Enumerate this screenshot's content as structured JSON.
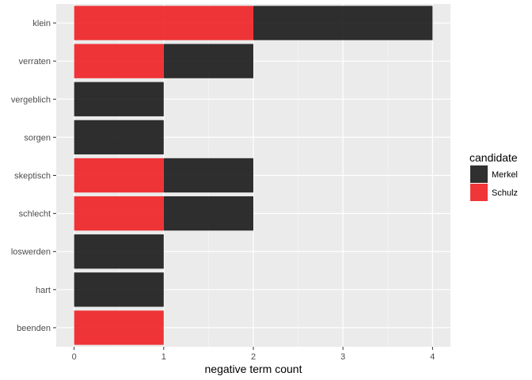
{
  "chart_data": {
    "type": "bar",
    "orientation": "horizontal",
    "stacked": true,
    "categories": [
      "klein",
      "verraten",
      "vergeblich",
      "sorgen",
      "skeptisch",
      "schlecht",
      "loswerden",
      "hart",
      "beenden"
    ],
    "series": [
      {
        "name": "Schulz",
        "color": "#ee2024",
        "values": [
          2,
          1,
          0,
          0,
          1,
          1,
          0,
          0,
          1
        ]
      },
      {
        "name": "Merkel",
        "color": "#1a1a1a",
        "values": [
          2,
          1,
          1,
          1,
          1,
          1,
          1,
          1,
          0
        ]
      }
    ],
    "xlabel": "negative term count",
    "ylabel": "",
    "xlim": [
      -0.2,
      4.2
    ],
    "xticks": [
      "0",
      "1",
      "2",
      "3",
      "4"
    ],
    "grid": true,
    "legend": {
      "title": "candidate",
      "position": "right",
      "entries": [
        {
          "name": "Merkel",
          "color": "#1a1a1a"
        },
        {
          "name": "Schulz",
          "color": "#ee2024"
        }
      ]
    }
  }
}
